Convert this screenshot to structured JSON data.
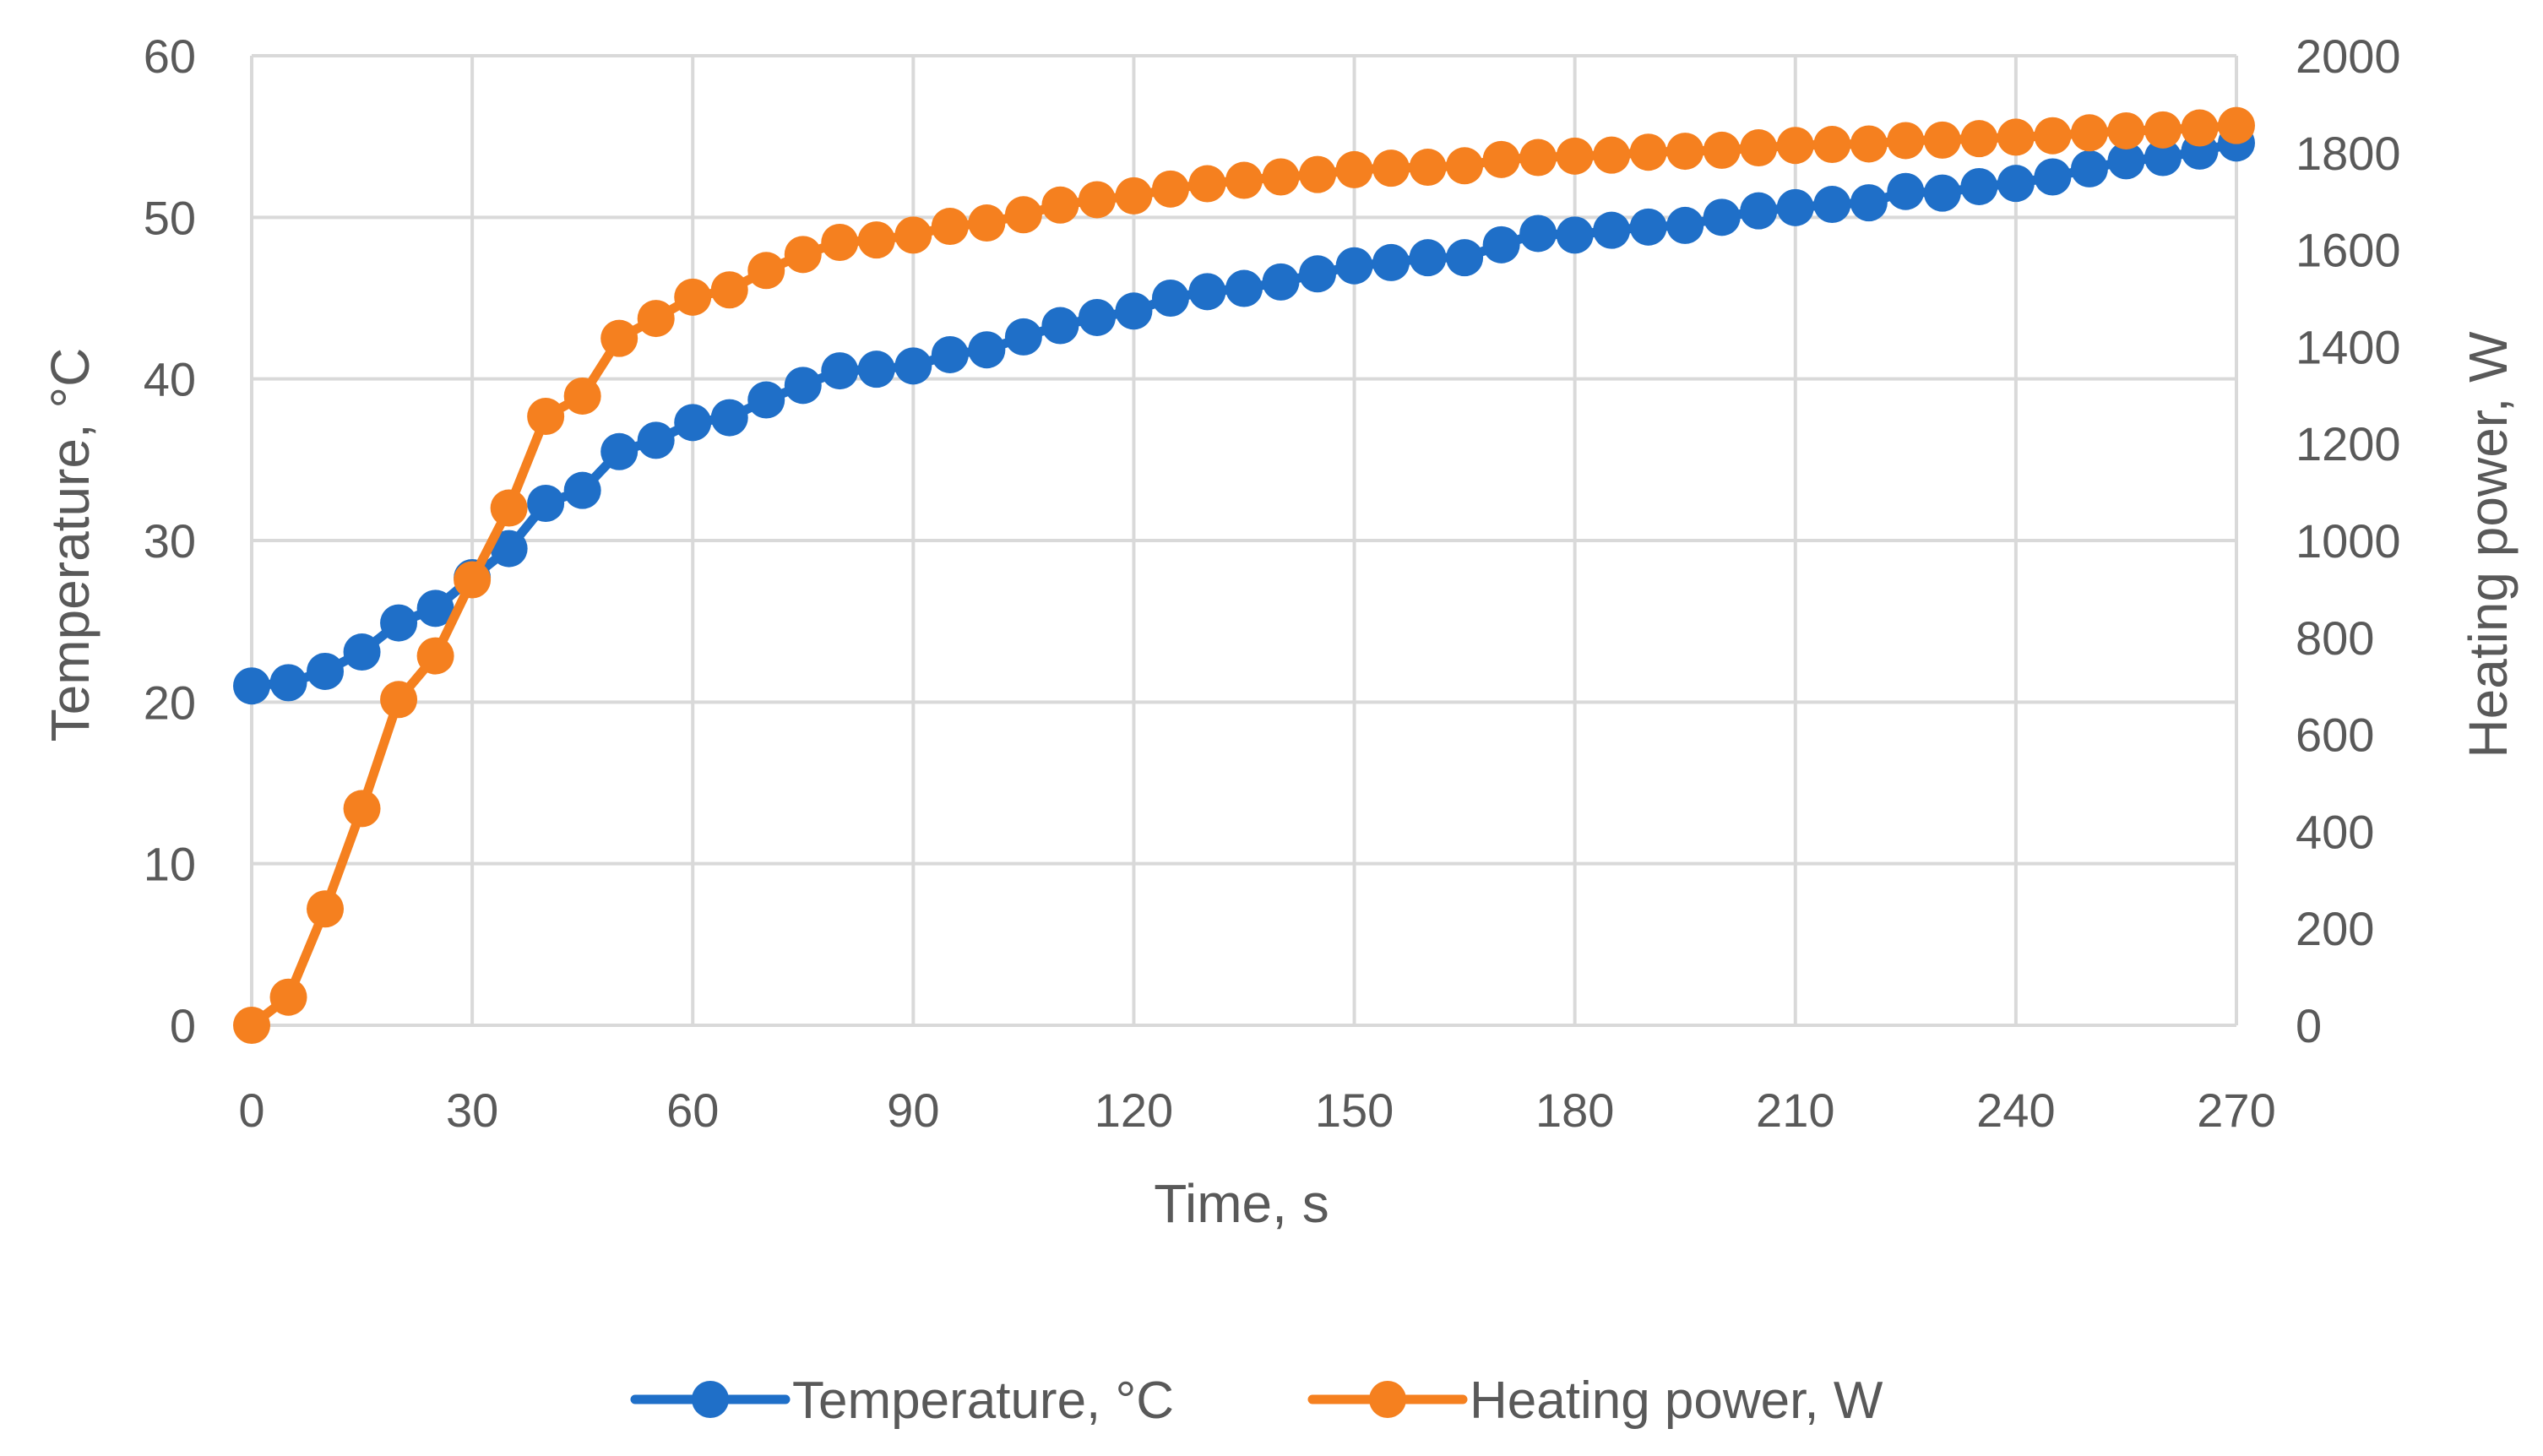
{
  "chart_data": {
    "type": "line",
    "title": "",
    "xlabel": "Time, s",
    "ylabel": "Temperature, °C",
    "y2label": "Heating power, W",
    "xlim": [
      0,
      270
    ],
    "ylim": [
      0,
      60
    ],
    "y2lim": [
      0,
      2000
    ],
    "xticks": [
      "0",
      "30",
      "60",
      "90",
      "120",
      "150",
      "180",
      "210",
      "240",
      "270"
    ],
    "yticks": [
      "0",
      "10",
      "20",
      "30",
      "40",
      "50",
      "60"
    ],
    "y2ticks": [
      "0",
      "200",
      "400",
      "600",
      "800",
      "1000",
      "1200",
      "1400",
      "1600",
      "1800",
      "2000"
    ],
    "grid": true,
    "legend_position": "bottom",
    "x": [
      0,
      5,
      10,
      15,
      20,
      25,
      30,
      35,
      40,
      45,
      50,
      55,
      60,
      65,
      70,
      75,
      80,
      85,
      90,
      95,
      100,
      105,
      110,
      115,
      120,
      125,
      130,
      135,
      140,
      145,
      150,
      155,
      160,
      165,
      170,
      175,
      180,
      185,
      190,
      195,
      200,
      205,
      210,
      215,
      220,
      225,
      230,
      235,
      240,
      245,
      250,
      255,
      260,
      265,
      270
    ],
    "series": [
      {
        "name": "Temperature, °C",
        "axis": "left",
        "color": "#1F6FC8",
        "values": [
          21.0,
          21.2,
          21.9,
          23.1,
          24.9,
          25.8,
          27.7,
          29.5,
          32.3,
          33.1,
          35.5,
          36.2,
          37.3,
          37.6,
          38.7,
          39.6,
          40.5,
          40.6,
          40.8,
          41.5,
          41.8,
          42.6,
          43.3,
          43.8,
          44.2,
          45.0,
          45.4,
          45.6,
          46.0,
          46.5,
          47.0,
          47.2,
          47.5,
          47.5,
          48.3,
          49.0,
          48.9,
          49.2,
          49.4,
          49.5,
          50.0,
          50.4,
          50.6,
          50.8,
          50.9,
          51.6,
          51.5,
          51.9,
          52.1,
          52.5,
          53.0,
          53.5,
          53.7,
          54.1,
          54.6
        ]
      },
      {
        "name": "Heating power, W",
        "axis": "right",
        "color": "#F5801F",
        "values": [
          0,
          58,
          240,
          447,
          672,
          762,
          919,
          1067,
          1256,
          1298,
          1417,
          1458,
          1502,
          1517,
          1557,
          1590,
          1615,
          1620,
          1630,
          1648,
          1655,
          1672,
          1692,
          1703,
          1711,
          1725,
          1736,
          1743,
          1750,
          1755,
          1765,
          1768,
          1770,
          1773,
          1786,
          1790,
          1793,
          1795,
          1801,
          1803,
          1805,
          1810,
          1815,
          1817,
          1818,
          1825,
          1826,
          1829,
          1832,
          1835,
          1841,
          1845,
          1847,
          1851,
          1856
        ]
      }
    ]
  }
}
